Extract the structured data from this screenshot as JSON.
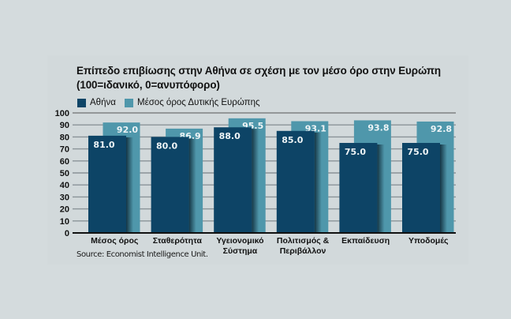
{
  "chart_data": {
    "type": "bar",
    "title": "Επίπεδο επιβίωσης στην Αθήνα σε σχέση με τον μέσο όρο στην Ευρώπη",
    "subtitle": "(100=ιδανικό, 0=ανυπόφορο)",
    "xlabel": "",
    "ylabel": "",
    "ylim": [
      0,
      100
    ],
    "yticks": [
      0,
      10,
      20,
      30,
      40,
      50,
      60,
      70,
      80,
      90,
      100
    ],
    "grid": true,
    "legend_position": "top-left",
    "categories": [
      [
        "Μέσος όρος"
      ],
      [
        "Σταθερότητα"
      ],
      [
        "Υγειονομικό",
        "Σύστημα"
      ],
      [
        "Πολιτισμός &",
        "Περιβάλλον"
      ],
      [
        "Εκπαίδευση"
      ],
      [
        "Υποδομές"
      ]
    ],
    "series": [
      {
        "name": "Αθήνα",
        "color": "#0d4466",
        "values": [
          81.0,
          80.0,
          88.0,
          85.0,
          75.0,
          75.0
        ],
        "labels": [
          "81.0",
          "80.0",
          "88.0",
          "85.0",
          "75.0",
          "75.0"
        ]
      },
      {
        "name": "Μέσος όρος Δυτικής Ευρώπης",
        "color": "#4f97ab",
        "values": [
          92.0,
          86.9,
          95.5,
          93.1,
          93.8,
          92.8
        ],
        "labels": [
          "92.0",
          "86.9",
          "95.5",
          "93.1",
          "93.8",
          "92.8"
        ]
      }
    ],
    "source": "Source: Economist Intelligence Unit."
  }
}
